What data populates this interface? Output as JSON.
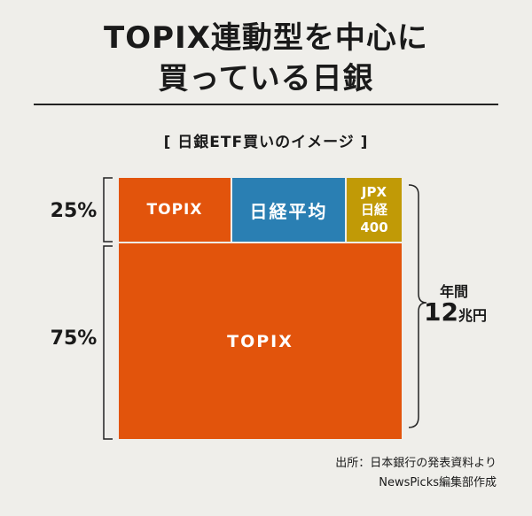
{
  "header": {
    "title_line1": "TOPIX連動型を中心に",
    "title_line2": "買っている日銀",
    "subtitle": "[ 日銀ETF買いのイメージ ]"
  },
  "chart_data": {
    "type": "treemap",
    "title": "TOPIX連動型を中心に 買っている日銀",
    "subtitle": "[ 日銀ETF買いのイメージ ]",
    "groups": [
      {
        "share_label": "25%",
        "share": 25,
        "cells": [
          {
            "label": "TOPIX",
            "color": "#e2540c"
          },
          {
            "label": "日経平均",
            "color": "#2a7fb3"
          },
          {
            "label_lines": [
              "JPX",
              "日経",
              "400"
            ],
            "color": "#c19a06"
          }
        ]
      },
      {
        "share_label": "75%",
        "share": 75,
        "cells": [
          {
            "label": "TOPIX",
            "color": "#e2540c"
          }
        ]
      }
    ],
    "total": {
      "label": "年間",
      "value": "12",
      "unit": "兆円"
    }
  },
  "footer": {
    "source_line1": "出所：日本銀行の発表資料より",
    "source_line2": "NewsPicks編集部作成"
  }
}
